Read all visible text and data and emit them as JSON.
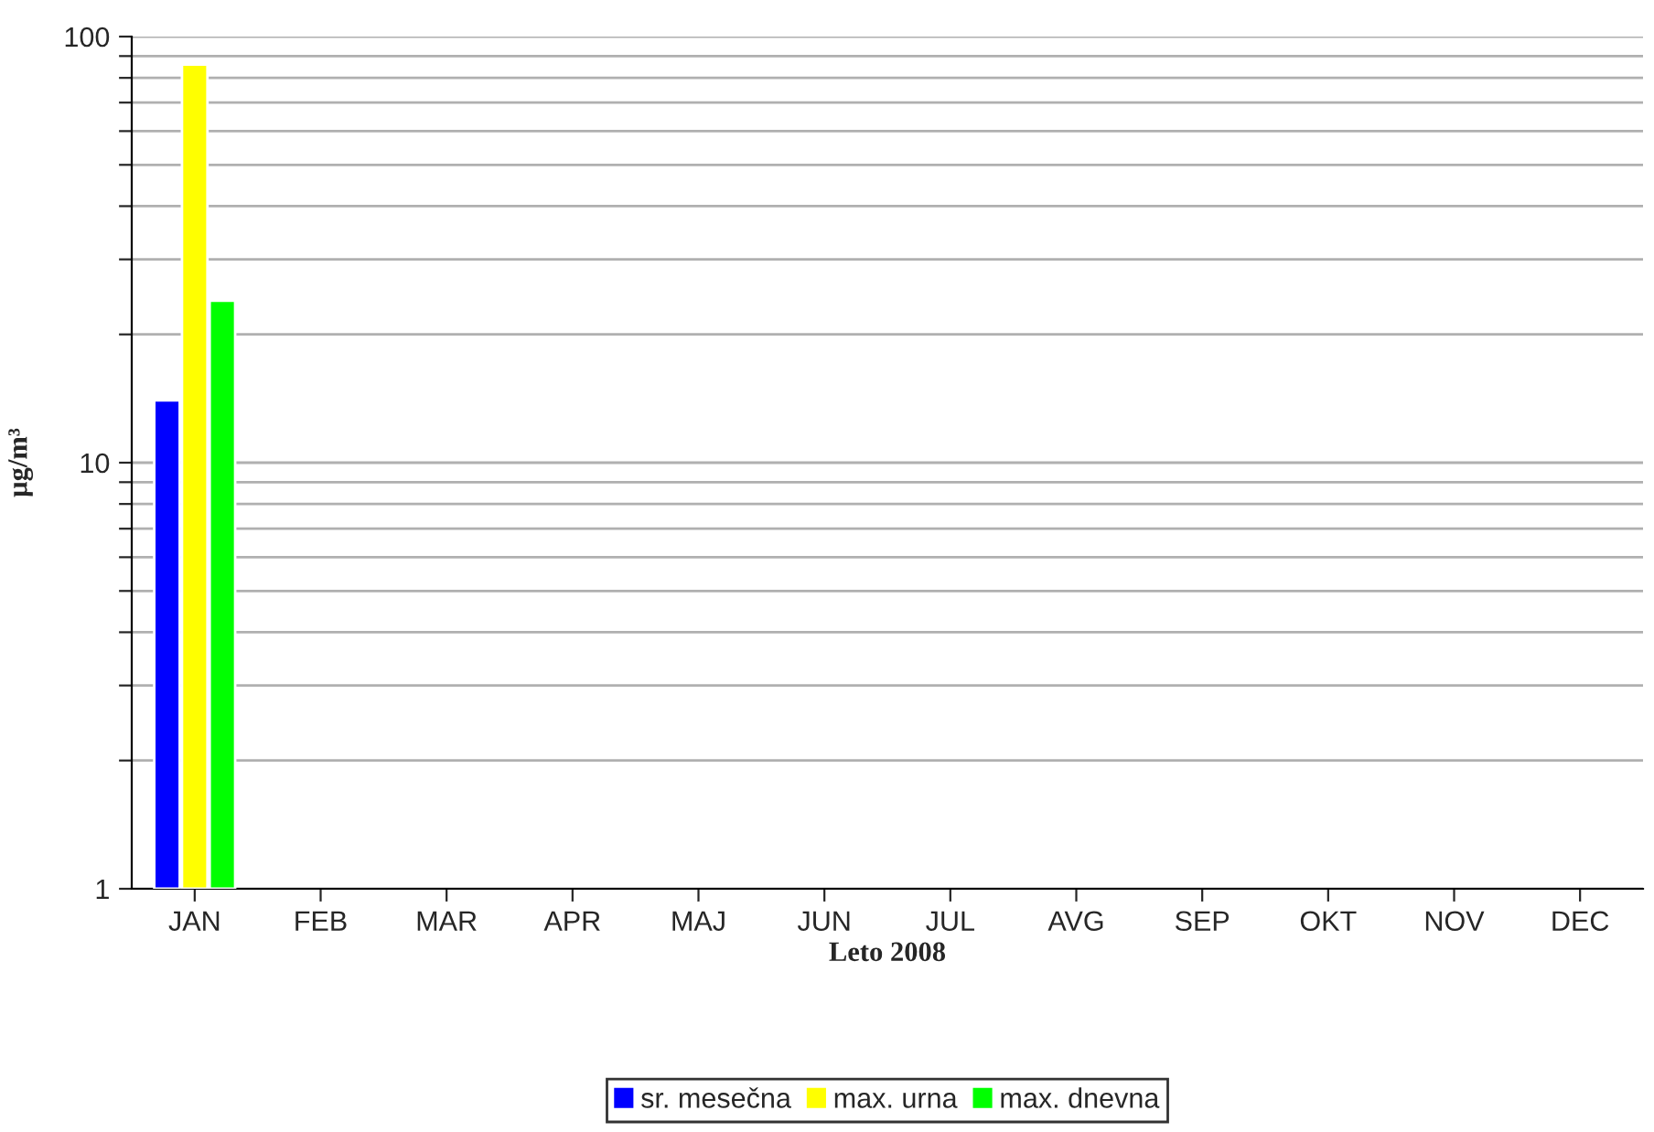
{
  "chart_data": {
    "type": "bar",
    "xlabel": "Leto 2008",
    "ylabel": "µg/m³",
    "categories": [
      "JAN",
      "FEB",
      "MAR",
      "APR",
      "MAJ",
      "JUN",
      "JUL",
      "AVG",
      "SEP",
      "OKT",
      "NOV",
      "DEC"
    ],
    "series": [
      {
        "name": "sr. mesečna",
        "color": "#0000ff",
        "values": [
          14,
          null,
          null,
          null,
          null,
          null,
          null,
          null,
          null,
          null,
          null,
          null
        ]
      },
      {
        "name": "max. urna",
        "color": "#ffff00",
        "values": [
          86,
          null,
          null,
          null,
          null,
          null,
          null,
          null,
          null,
          null,
          null,
          null
        ]
      },
      {
        "name": "max. dnevna",
        "color": "#00ff00",
        "values": [
          24,
          null,
          null,
          null,
          null,
          null,
          null,
          null,
          null,
          null,
          null,
          null
        ]
      }
    ],
    "log": "y",
    "ylim": [
      1,
      100
    ],
    "yticks": [
      1,
      {
        "value": 2,
        "label": null
      },
      {
        "value": 3,
        "label": null
      },
      {
        "value": 4,
        "label": null
      },
      {
        "value": 5,
        "label": null
      },
      {
        "value": 6,
        "label": null
      },
      {
        "value": 7,
        "label": null
      },
      {
        "value": 8,
        "label": null
      },
      {
        "value": 9,
        "label": null
      },
      10,
      {
        "value": 20,
        "label": null
      },
      {
        "value": 30,
        "label": null
      },
      {
        "value": 40,
        "label": null
      },
      {
        "value": 50,
        "label": null
      },
      {
        "value": 60,
        "label": null
      },
      {
        "value": 70,
        "label": null
      },
      {
        "value": 80,
        "label": null
      },
      {
        "value": 90,
        "label": null
      },
      100
    ],
    "grid": "y",
    "legend": "bottom"
  }
}
